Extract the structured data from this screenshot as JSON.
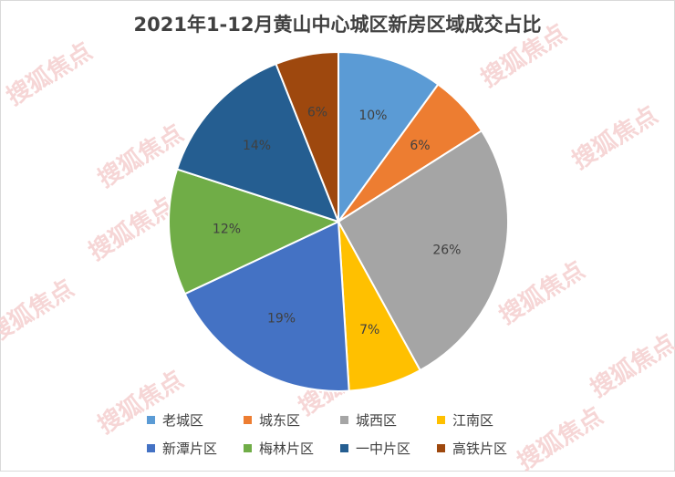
{
  "chart_data": {
    "type": "pie",
    "title": "2021年1-12月黄山中心城区新房区域成交占比",
    "legend_position": "bottom",
    "slices": [
      {
        "name": "老城区",
        "value": 10,
        "label": "10%",
        "color": "#5b9bd5"
      },
      {
        "name": "城东区",
        "value": 6,
        "label": "6%",
        "color": "#ed7d31"
      },
      {
        "name": "城西区",
        "value": 26,
        "label": "26%",
        "color": "#a5a5a5"
      },
      {
        "name": "江南区",
        "value": 7,
        "label": "7%",
        "color": "#ffc000"
      },
      {
        "name": "新潭片区",
        "value": 19,
        "label": "19%",
        "color": "#4472c4"
      },
      {
        "name": "梅林片区",
        "value": 12,
        "label": "12%",
        "color": "#70ad47"
      },
      {
        "name": "一中片区",
        "value": 14,
        "label": "14%",
        "color": "#255e91"
      },
      {
        "name": "高铁片区",
        "value": 6,
        "label": "6%",
        "color": "#9e480e"
      }
    ]
  },
  "watermark": {
    "text": "搜狐焦点"
  }
}
